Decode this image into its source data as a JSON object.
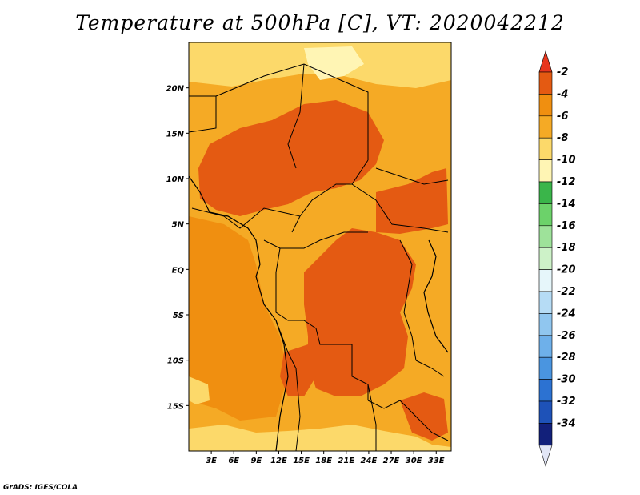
{
  "title": "Temperature at 500hPa [C], VT: 2020042212",
  "credit": "GrADS: IGES/COLA",
  "map": {
    "lat_range": [
      -20,
      25
    ],
    "lon_range": [
      0,
      35
    ],
    "lat_ticks": [
      {
        "value": 20,
        "label": "20N"
      },
      {
        "value": 15,
        "label": "15N"
      },
      {
        "value": 10,
        "label": "10N"
      },
      {
        "value": 5,
        "label": "5N"
      },
      {
        "value": 0,
        "label": "EQ"
      },
      {
        "value": -5,
        "label": "5S"
      },
      {
        "value": -10,
        "label": "10S"
      },
      {
        "value": -15,
        "label": "15S"
      }
    ],
    "lon_ticks": [
      {
        "value": 3,
        "label": "3E"
      },
      {
        "value": 6,
        "label": "6E"
      },
      {
        "value": 9,
        "label": "9E"
      },
      {
        "value": 12,
        "label": "12E"
      },
      {
        "value": 15,
        "label": "15E"
      },
      {
        "value": 18,
        "label": "18E"
      },
      {
        "value": 21,
        "label": "21E"
      },
      {
        "value": 24,
        "label": "24E"
      },
      {
        "value": 27,
        "label": "27E"
      },
      {
        "value": 30,
        "label": "30E"
      },
      {
        "value": 33,
        "label": "33E"
      }
    ]
  },
  "colorbar": {
    "levels": [
      "-2",
      "-4",
      "-6",
      "-8",
      "-10",
      "-12",
      "-14",
      "-16",
      "-18",
      "-20",
      "-22",
      "-24",
      "-26",
      "-28",
      "-30",
      "-32",
      "-34"
    ],
    "colors": [
      "#e45a12",
      "#f08f10",
      "#f5aa25",
      "#fcd96a",
      "#fff5b4",
      "#3ab54a",
      "#6cd26a",
      "#9ee29a",
      "#cdf2c8",
      "#e6f6fa",
      "#b6dcf5",
      "#90c6ef",
      "#6eb0ea",
      "#4a95e0",
      "#2c72d2",
      "#1e52b8",
      "#12207a"
    ],
    "top_color": "#e8361e",
    "bottom_color": "#e2e6f6"
  },
  "palette": {
    "warm_max": "#e45a12",
    "warm": "#f08f10",
    "mid": "#f5aa25",
    "light": "#fcd96a",
    "pale": "#fff5b4"
  }
}
